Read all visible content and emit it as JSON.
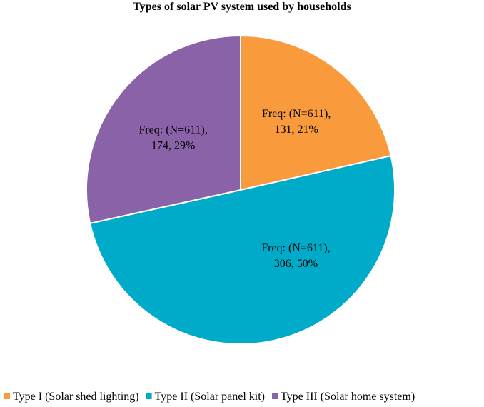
{
  "chart_data": {
    "type": "pie",
    "title": "Types of solar PV system used by households",
    "legend_position": "bottom",
    "slices": [
      {
        "name": "Type I (Solar shed lighting)",
        "value": 131,
        "percent": 21,
        "color": "#F99B3C",
        "label_line1": "Freq: (N=611),",
        "label_line2": "131, 21%"
      },
      {
        "name": "Type II (Solar panel kit)",
        "value": 306,
        "percent": 50,
        "color": "#00AAC9",
        "label_line1": "Freq: (N=611),",
        "label_line2": "306, 50%"
      },
      {
        "name": "Type III (Solar home system)",
        "value": 174,
        "percent": 29,
        "color": "#8A62A8",
        "label_line1": "Freq: (N=611),",
        "label_line2": "174, 29%"
      }
    ]
  }
}
